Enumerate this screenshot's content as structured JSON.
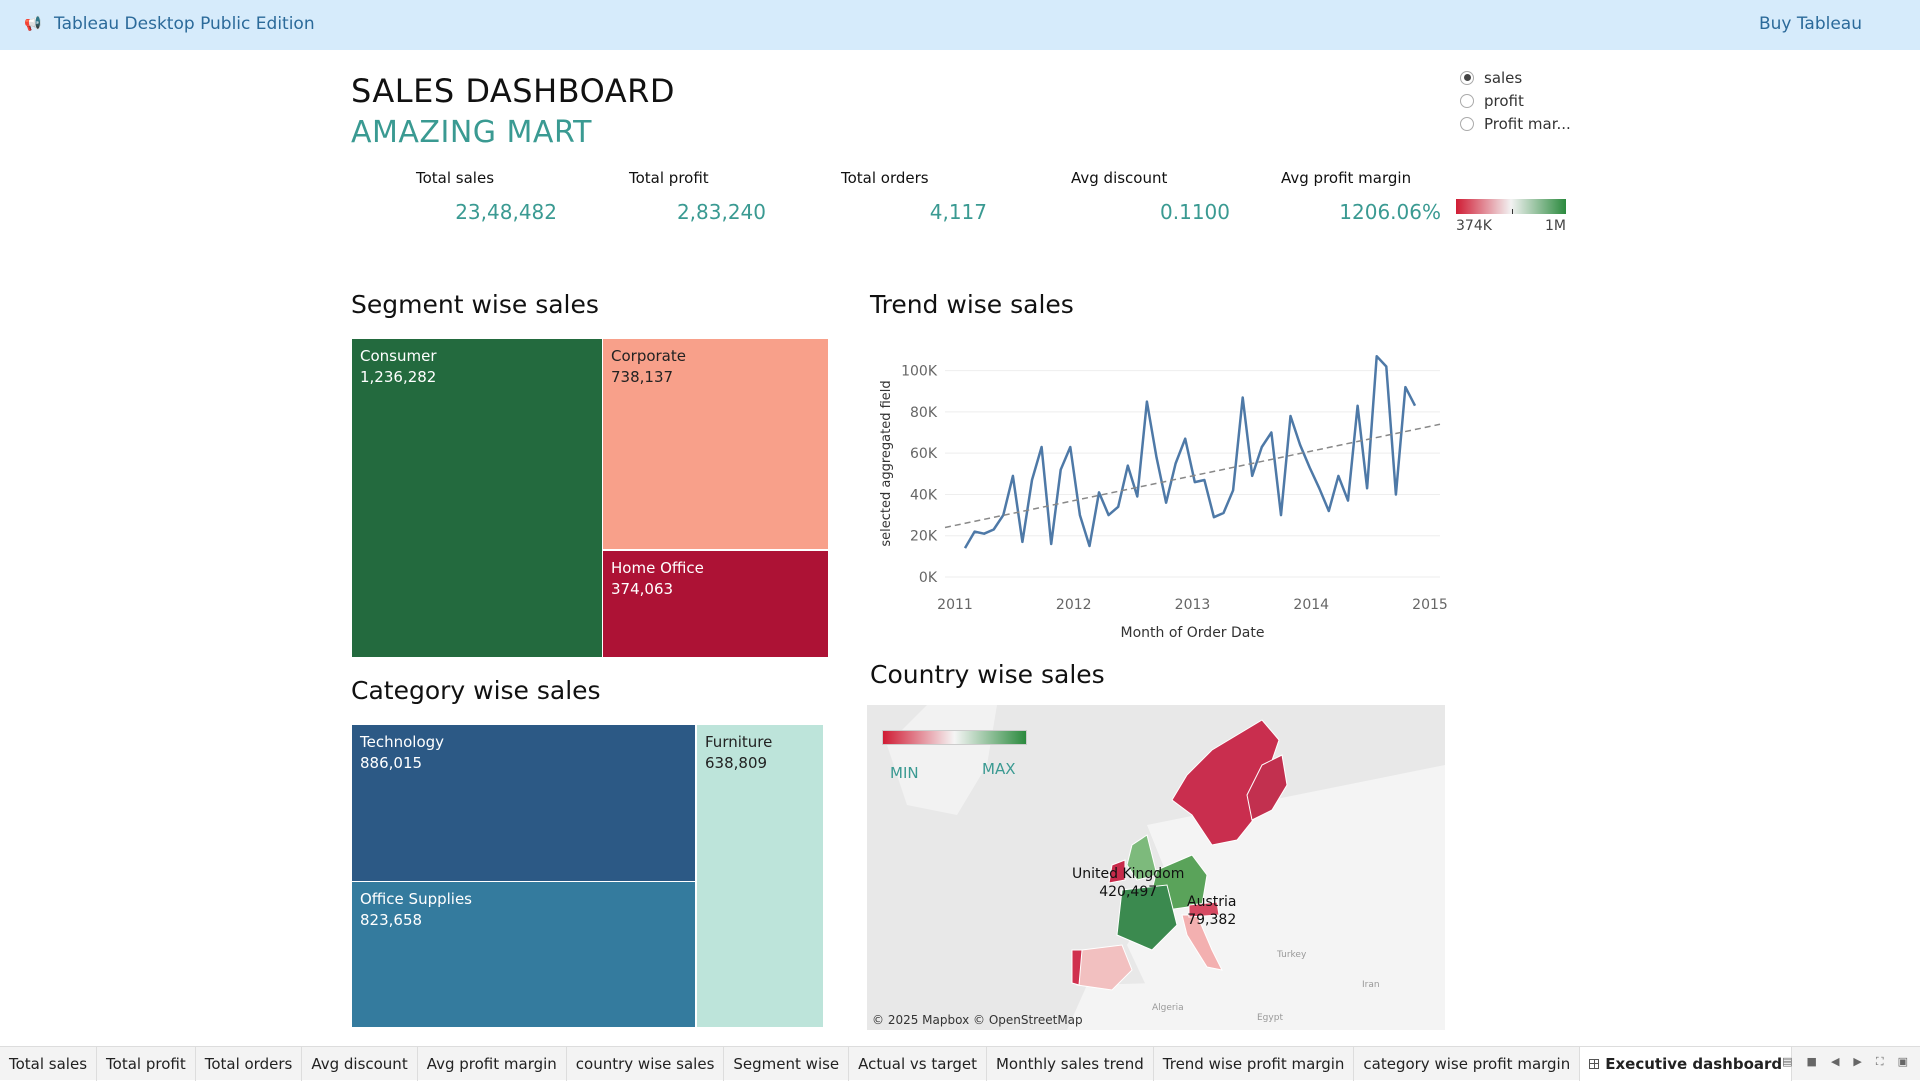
{
  "topbar": {
    "edition": "Tableau Desktop Public Edition",
    "buy": "Buy Tableau"
  },
  "dashboard": {
    "title": "SALES DASHBOARD",
    "subtitle": "AMAZING MART"
  },
  "measure_selector": {
    "options": [
      "sales",
      "profit",
      "Profit mar..."
    ],
    "selected": "sales"
  },
  "kpis": [
    {
      "label": "Total sales",
      "value": "23,48,482"
    },
    {
      "label": "Total profit",
      "value": "2,83,240"
    },
    {
      "label": "Total orders",
      "value": "4,117"
    },
    {
      "label": "Avg discount",
      "value": "0.1100"
    },
    {
      "label": "Avg profit margin",
      "value": "1206.06%"
    }
  ],
  "kpi_legend": {
    "min": "374K",
    "max": "1M"
  },
  "segment": {
    "title": "Segment wise sales",
    "items": [
      {
        "name": "Consumer",
        "value": "1,236,282",
        "color": "#236a3e"
      },
      {
        "name": "Corporate",
        "value": "738,137",
        "color": "#f8a08a"
      },
      {
        "name": "Home Office",
        "value": "374,063",
        "color": "#ad1235"
      }
    ]
  },
  "category": {
    "title": "Category wise sales",
    "items": [
      {
        "name": "Technology",
        "value": "886,015",
        "color": "#2c5985"
      },
      {
        "name": "Office Supplies",
        "value": "823,658",
        "color": "#347b9e"
      },
      {
        "name": "Furniture",
        "value": "638,809",
        "color": "#bde4da"
      }
    ]
  },
  "trend": {
    "title": "Trend wise sales"
  },
  "chart_data": {
    "type": "line",
    "title": "Trend wise sales",
    "xlabel": "Month of Order Date",
    "ylabel": "selected aggregated field",
    "ylim": [
      0,
      110000
    ],
    "y_ticks": [
      "0K",
      "20K",
      "40K",
      "60K",
      "80K",
      "100K"
    ],
    "x_ticks": [
      "2011",
      "2012",
      "2013",
      "2014",
      "2015"
    ],
    "series": [
      {
        "values": [
          14000,
          22000,
          21000,
          23000,
          30000,
          49000,
          17000,
          47000,
          63000,
          16000,
          52000,
          63000,
          30000,
          15000,
          41000,
          30000,
          34000,
          54000,
          39000,
          85000,
          58000,
          36000,
          55000,
          67000,
          46000,
          47000,
          29000,
          31000,
          42000,
          87000,
          49000,
          63000,
          70000,
          30000,
          78000,
          64000,
          53000,
          43000,
          32000,
          49000,
          37000,
          83000,
          43000,
          107000,
          102000,
          40000,
          92000,
          83000
        ]
      }
    ],
    "trendline": {
      "style": "dashed",
      "start": 24000,
      "end": 74000
    },
    "grid": true
  },
  "country": {
    "title": "Country wise sales",
    "legend": {
      "min": "MIN",
      "max": "MAX"
    },
    "labels": [
      {
        "name": "United Kingdom",
        "value": "420,497"
      },
      {
        "name": "Austria",
        "value": "79,382"
      }
    ],
    "credit": "© 2025 Mapbox © OpenStreetMap",
    "basemap_labels": [
      "Turkey",
      "Iran",
      "Algeria",
      "Egypt"
    ]
  },
  "tabs": [
    "Total sales",
    "Total profit",
    "Total orders",
    "Avg discount",
    "Avg profit margin",
    "country wise sales",
    "Segment wise",
    "Actual vs target",
    "Monthly sales trend",
    "Trend wise profit margin",
    "category wise profit margin",
    "Executive dashboard"
  ],
  "active_tab": "Executive dashboard"
}
